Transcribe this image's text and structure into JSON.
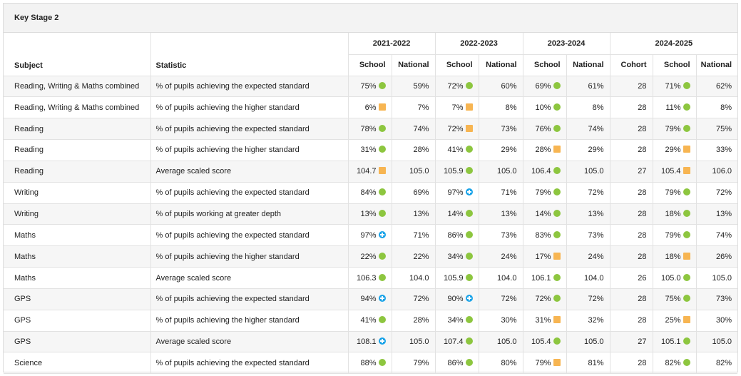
{
  "panel": {
    "title": "Key Stage 2"
  },
  "header": {
    "subject_label": "Subject",
    "statistic_label": "Statistic",
    "years": [
      "2021-2022",
      "2022-2023",
      "2023-2024",
      "2024-2025"
    ],
    "school_label": "School",
    "national_label": "National",
    "cohort_label": "Cohort"
  },
  "colors": {
    "green": "#8dc63f",
    "amber": "#f7b552",
    "blue": "#1aa3e8"
  },
  "rows": [
    {
      "subject": "Reading, Writing & Maths combined",
      "statistic": "% of pupils achieving the expected standard",
      "y1_school": "75%",
      "y1_ind": "green",
      "y1_national": "59%",
      "y2_school": "72%",
      "y2_ind": "green",
      "y2_national": "60%",
      "y3_school": "69%",
      "y3_ind": "green",
      "y3_national": "61%",
      "y4_cohort": "28",
      "y4_school": "71%",
      "y4_ind": "green",
      "y4_national": "62%"
    },
    {
      "subject": "Reading, Writing & Maths combined",
      "statistic": "% of pupils achieving the higher standard",
      "y1_school": "6%",
      "y1_ind": "amber",
      "y1_national": "7%",
      "y2_school": "7%",
      "y2_ind": "amber",
      "y2_national": "8%",
      "y3_school": "10%",
      "y3_ind": "green",
      "y3_national": "8%",
      "y4_cohort": "28",
      "y4_school": "11%",
      "y4_ind": "green",
      "y4_national": "8%"
    },
    {
      "subject": "Reading",
      "statistic": "% of pupils achieving the expected standard",
      "y1_school": "78%",
      "y1_ind": "green",
      "y1_national": "74%",
      "y2_school": "72%",
      "y2_ind": "amber",
      "y2_national": "73%",
      "y3_school": "76%",
      "y3_ind": "green",
      "y3_national": "74%",
      "y4_cohort": "28",
      "y4_school": "79%",
      "y4_ind": "green",
      "y4_national": "75%"
    },
    {
      "subject": "Reading",
      "statistic": "% of pupils achieving the higher standard",
      "y1_school": "31%",
      "y1_ind": "green",
      "y1_national": "28%",
      "y2_school": "41%",
      "y2_ind": "green",
      "y2_national": "29%",
      "y3_school": "28%",
      "y3_ind": "amber",
      "y3_national": "29%",
      "y4_cohort": "28",
      "y4_school": "29%",
      "y4_ind": "amber",
      "y4_national": "33%"
    },
    {
      "subject": "Reading",
      "statistic": "Average scaled score",
      "y1_school": "104.7",
      "y1_ind": "amber",
      "y1_national": "105.0",
      "y2_school": "105.9",
      "y2_ind": "green",
      "y2_national": "105.0",
      "y3_school": "106.4",
      "y3_ind": "green",
      "y3_national": "105.0",
      "y4_cohort": "27",
      "y4_school": "105.4",
      "y4_ind": "amber",
      "y4_national": "106.0"
    },
    {
      "subject": "Writing",
      "statistic": "% of pupils achieving the expected standard",
      "y1_school": "84%",
      "y1_ind": "green",
      "y1_national": "69%",
      "y2_school": "97%",
      "y2_ind": "blue",
      "y2_national": "71%",
      "y3_school": "79%",
      "y3_ind": "green",
      "y3_national": "72%",
      "y4_cohort": "28",
      "y4_school": "79%",
      "y4_ind": "green",
      "y4_national": "72%"
    },
    {
      "subject": "Writing",
      "statistic": "% of pupils working at greater depth",
      "y1_school": "13%",
      "y1_ind": "green",
      "y1_national": "13%",
      "y2_school": "14%",
      "y2_ind": "green",
      "y2_national": "13%",
      "y3_school": "14%",
      "y3_ind": "green",
      "y3_national": "13%",
      "y4_cohort": "28",
      "y4_school": "18%",
      "y4_ind": "green",
      "y4_national": "13%"
    },
    {
      "subject": "Maths",
      "statistic": "% of pupils achieving the expected standard",
      "y1_school": "97%",
      "y1_ind": "blue",
      "y1_national": "71%",
      "y2_school": "86%",
      "y2_ind": "green",
      "y2_national": "73%",
      "y3_school": "83%",
      "y3_ind": "green",
      "y3_national": "73%",
      "y4_cohort": "28",
      "y4_school": "79%",
      "y4_ind": "green",
      "y4_national": "74%"
    },
    {
      "subject": "Maths",
      "statistic": "% of pupils achieving the higher standard",
      "y1_school": "22%",
      "y1_ind": "green",
      "y1_national": "22%",
      "y2_school": "34%",
      "y2_ind": "green",
      "y2_national": "24%",
      "y3_school": "17%",
      "y3_ind": "amber",
      "y3_national": "24%",
      "y4_cohort": "28",
      "y4_school": "18%",
      "y4_ind": "amber",
      "y4_national": "26%"
    },
    {
      "subject": "Maths",
      "statistic": "Average scaled score",
      "y1_school": "106.3",
      "y1_ind": "green",
      "y1_national": "104.0",
      "y2_school": "105.9",
      "y2_ind": "green",
      "y2_national": "104.0",
      "y3_school": "106.1",
      "y3_ind": "green",
      "y3_national": "104.0",
      "y4_cohort": "26",
      "y4_school": "105.0",
      "y4_ind": "green",
      "y4_national": "105.0"
    },
    {
      "subject": "GPS",
      "statistic": "% of pupils achieving the expected standard",
      "y1_school": "94%",
      "y1_ind": "blue",
      "y1_national": "72%",
      "y2_school": "90%",
      "y2_ind": "blue",
      "y2_national": "72%",
      "y3_school": "72%",
      "y3_ind": "green",
      "y3_national": "72%",
      "y4_cohort": "28",
      "y4_school": "75%",
      "y4_ind": "green",
      "y4_national": "73%"
    },
    {
      "subject": "GPS",
      "statistic": "% of pupils achieving the higher standard",
      "y1_school": "41%",
      "y1_ind": "green",
      "y1_national": "28%",
      "y2_school": "34%",
      "y2_ind": "green",
      "y2_national": "30%",
      "y3_school": "31%",
      "y3_ind": "amber",
      "y3_national": "32%",
      "y4_cohort": "28",
      "y4_school": "25%",
      "y4_ind": "amber",
      "y4_national": "30%"
    },
    {
      "subject": "GPS",
      "statistic": "Average scaled score",
      "y1_school": "108.1",
      "y1_ind": "blue",
      "y1_national": "105.0",
      "y2_school": "107.4",
      "y2_ind": "green",
      "y2_national": "105.0",
      "y3_school": "105.4",
      "y3_ind": "green",
      "y3_national": "105.0",
      "y4_cohort": "27",
      "y4_school": "105.1",
      "y4_ind": "green",
      "y4_national": "105.0"
    },
    {
      "subject": "Science",
      "statistic": "% of pupils achieving the expected standard",
      "y1_school": "88%",
      "y1_ind": "green",
      "y1_national": "79%",
      "y2_school": "86%",
      "y2_ind": "green",
      "y2_national": "80%",
      "y3_school": "79%",
      "y3_ind": "amber",
      "y3_national": "81%",
      "y4_cohort": "28",
      "y4_school": "82%",
      "y4_ind": "green",
      "y4_national": "82%"
    }
  ]
}
